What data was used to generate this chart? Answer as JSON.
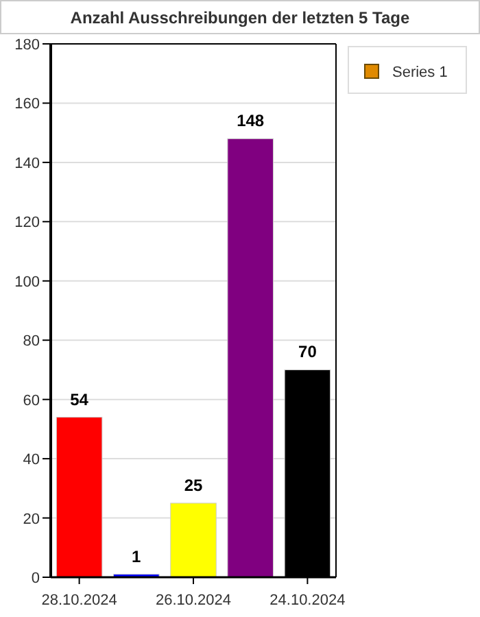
{
  "chart_data": {
    "type": "bar",
    "title": "Anzahl Ausschreibungen der letzten 5 Tage",
    "categories": [
      "28.10.2024",
      null,
      "26.10.2024",
      null,
      "24.10.2024"
    ],
    "series": [
      {
        "name": "Series 1",
        "color": "#e08a00",
        "colors": [
          "#ff0000",
          "#0000ff",
          "#ffff00",
          "#800080",
          "#000000"
        ],
        "values": [
          54,
          1,
          25,
          148,
          70
        ]
      }
    ],
    "ylim": [
      0,
      180
    ],
    "yticks": [
      0,
      20,
      40,
      60,
      80,
      100,
      120,
      140,
      160,
      180
    ],
    "grid": "y",
    "legend": "top right",
    "data_labels": true
  }
}
